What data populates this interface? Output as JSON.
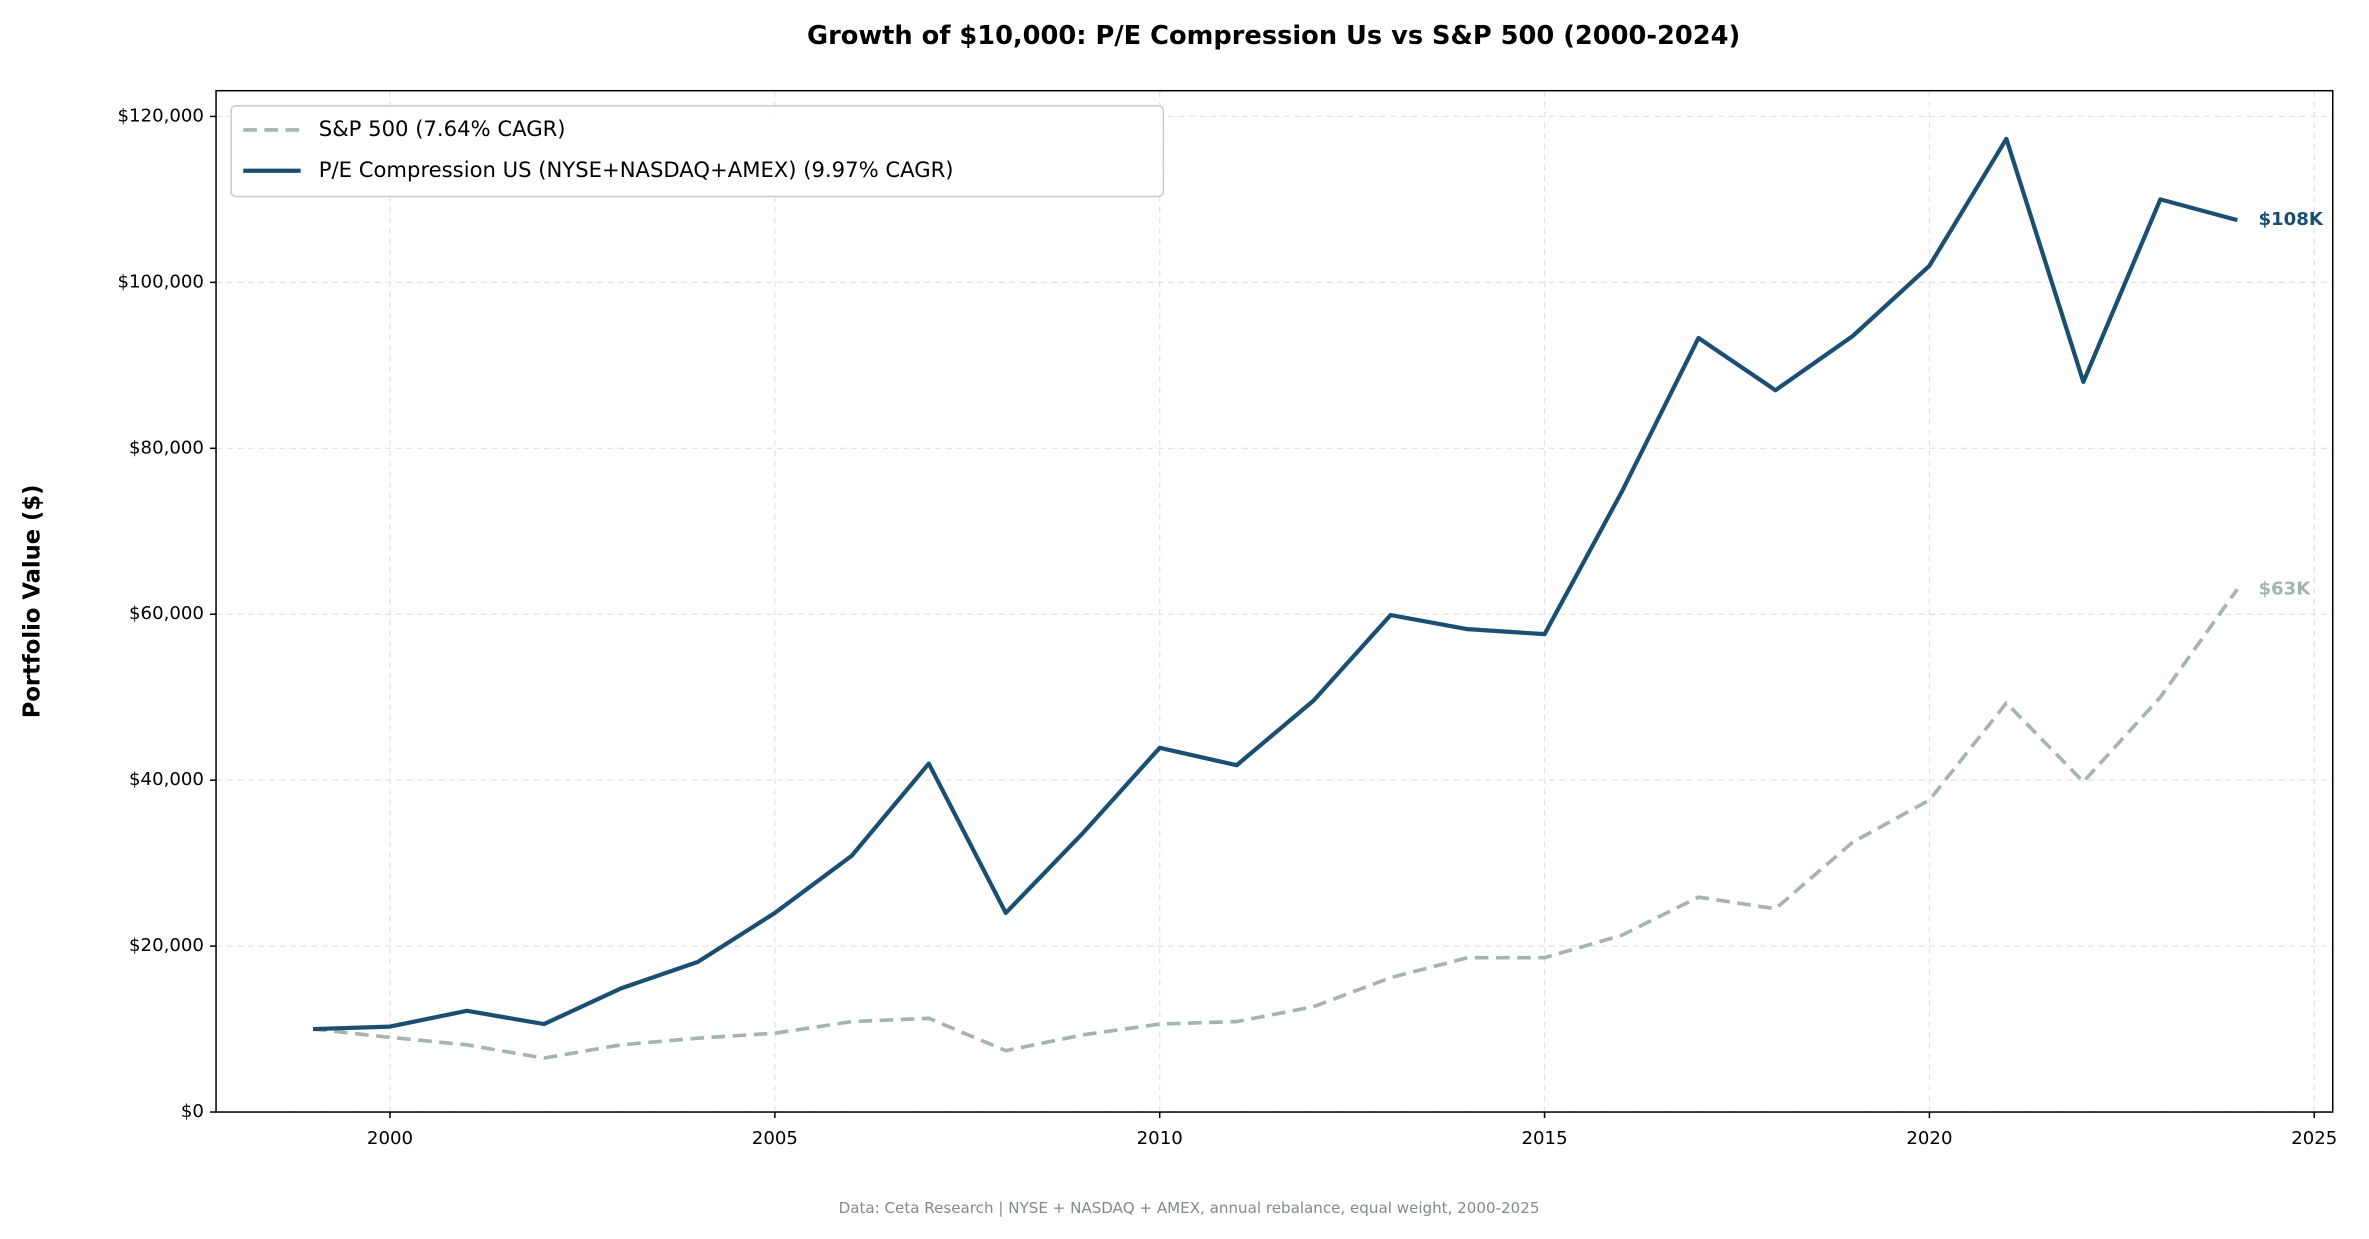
{
  "chart_data": {
    "type": "line",
    "title": "Growth of $10,000: P/E Compression Us vs S&P 500 (2000-2024)",
    "ylabel": "Portfolio Value ($)",
    "footnote": "Data: Ceta Research | NYSE + NASDAQ + AMEX, annual rebalance, equal weight, 2000-2025",
    "x": [
      1999,
      2000,
      2001,
      2002,
      2003,
      2004,
      2005,
      2006,
      2007,
      2008,
      2009,
      2010,
      2011,
      2012,
      2013,
      2014,
      2015,
      2016,
      2017,
      2018,
      2019,
      2020,
      2021,
      2022,
      2023,
      2024
    ],
    "series": [
      {
        "name": "S&P 500 (7.64% CAGR)",
        "color": "#a5b3b3",
        "linestyle": "dashed",
        "end_label": "$63K",
        "values": [
          10000,
          9000,
          8100,
          6500,
          8100,
          8900,
          9500,
          10900,
          11300,
          7400,
          9300,
          10600,
          10900,
          12700,
          16200,
          18600,
          18600,
          21300,
          25900,
          24500,
          32500,
          37600,
          49300,
          39800,
          50000,
          63000
        ]
      },
      {
        "name": "P/E Compression US (NYSE+NASDAQ+AMEX) (9.97% CAGR)",
        "color": "#1b4f72",
        "linestyle": "solid",
        "end_label": "$108K",
        "values": [
          10000,
          10300,
          12200,
          10600,
          14900,
          18100,
          24000,
          30900,
          42000,
          24000,
          33600,
          43900,
          41800,
          49600,
          59900,
          58200,
          57600,
          74700,
          93300,
          87000,
          93500,
          102000,
          117300,
          88000,
          110000,
          107500
        ]
      }
    ],
    "xlim": [
      1997.74,
      2025.24
    ],
    "xticks": [
      2000,
      2005,
      2010,
      2015,
      2020,
      2025
    ],
    "ylim": [
      0,
      123100
    ],
    "yticks": [
      {
        "value": 0,
        "label": "$0"
      },
      {
        "value": 20000,
        "label": "$20,000"
      },
      {
        "value": 40000,
        "label": "$40,000"
      },
      {
        "value": 60000,
        "label": "$60,000"
      },
      {
        "value": 80000,
        "label": "$80,000"
      },
      {
        "value": 100000,
        "label": "$100,000"
      },
      {
        "value": 120000,
        "label": "$120,000"
      }
    ],
    "grid": true,
    "legend": "upper left"
  }
}
